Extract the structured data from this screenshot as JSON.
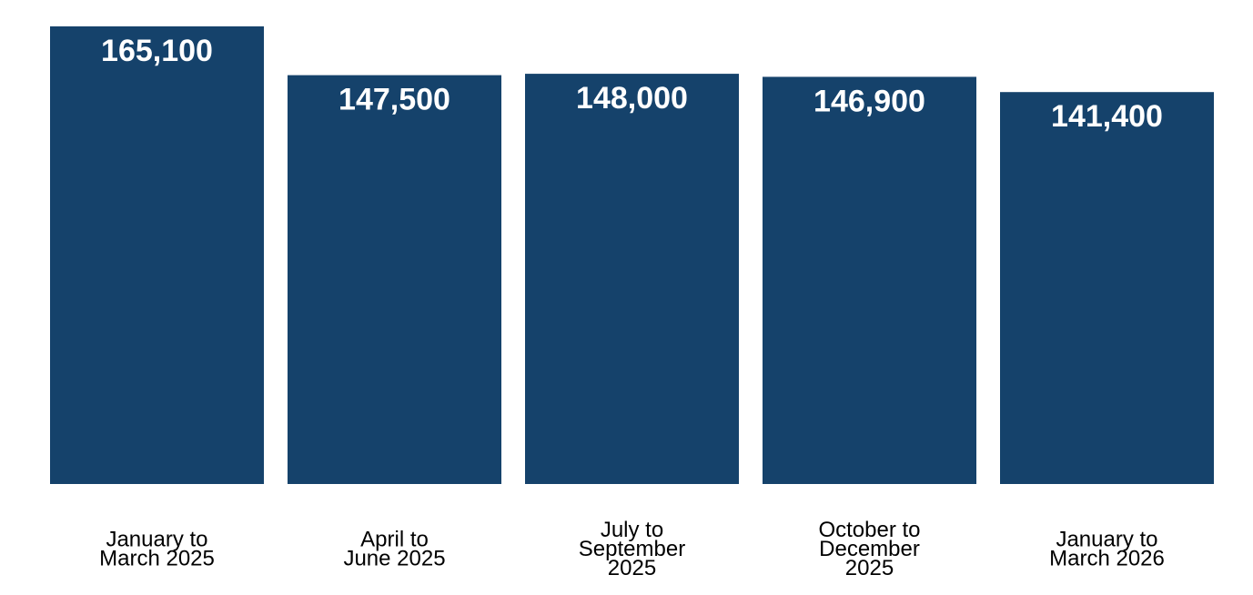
{
  "chart_data": {
    "type": "bar",
    "categories": [
      [
        "January to",
        "March 2025"
      ],
      [
        "April to",
        "June 2025"
      ],
      [
        "July to",
        "September",
        "2025"
      ],
      [
        "October to",
        "December",
        "2025"
      ],
      [
        "January to",
        "March 2026"
      ]
    ],
    "values": [
      165100,
      147500,
      148000,
      146900,
      141400
    ],
    "data_labels": [
      "165,100",
      "147,500",
      "148,000",
      "146,900",
      "141,400"
    ],
    "title": "",
    "xlabel": "",
    "ylabel": "",
    "ylim": [
      0,
      165100
    ],
    "grid": false,
    "legend": "none",
    "bar_color": "#15426b",
    "label_color": "#ffffff",
    "category_color": "#000000"
  }
}
